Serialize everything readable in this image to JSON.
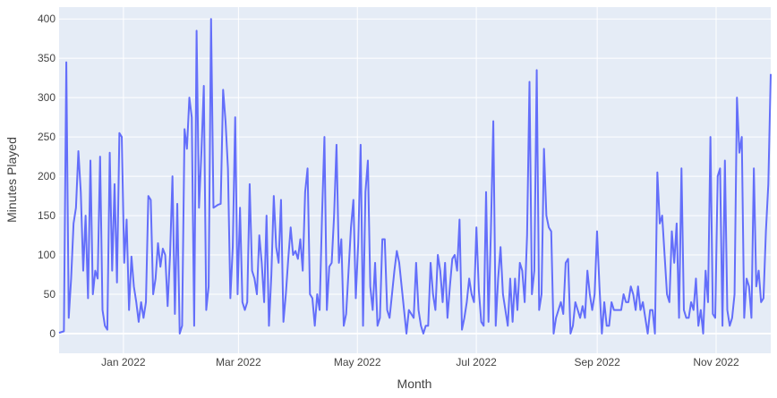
{
  "chart_data": {
    "type": "line",
    "xlabel": "Month",
    "ylabel": "Minutes Played",
    "x_start": "2021-11-29",
    "x_end": "2022-11-29",
    "ylim": [
      -25,
      415
    ],
    "grid": true,
    "yticks": [
      0,
      50,
      100,
      150,
      200,
      250,
      300,
      350,
      400
    ],
    "xticks": [
      {
        "date": "2022-01-01",
        "label": "Jan 2022"
      },
      {
        "date": "2022-03-01",
        "label": "Mar 2022"
      },
      {
        "date": "2022-05-01",
        "label": "May 2022"
      },
      {
        "date": "2022-07-01",
        "label": "Jul 2022"
      },
      {
        "date": "2022-09-01",
        "label": "Sep 2022"
      },
      {
        "date": "2022-11-01",
        "label": "Nov 2022"
      }
    ],
    "colors": {
      "line": "#636efa",
      "plot_bg": "#e5ecf6",
      "grid": "#ffffff"
    },
    "values": [
      1,
      2,
      3,
      345,
      20,
      70,
      140,
      160,
      232,
      180,
      80,
      150,
      45,
      220,
      50,
      80,
      70,
      225,
      30,
      10,
      5,
      230,
      80,
      190,
      65,
      255,
      250,
      90,
      145,
      30,
      98,
      60,
      40,
      15,
      40,
      20,
      40,
      175,
      170,
      50,
      70,
      115,
      85,
      108,
      100,
      35,
      100,
      200,
      25,
      165,
      0,
      10,
      260,
      235,
      300,
      275,
      10,
      385,
      160,
      230,
      315,
      30,
      60,
      400,
      160,
      162,
      164,
      165,
      310,
      270,
      210,
      45,
      110,
      275,
      50,
      160,
      40,
      30,
      40,
      190,
      80,
      70,
      50,
      125,
      90,
      40,
      150,
      10,
      75,
      175,
      110,
      90,
      170,
      15,
      50,
      95,
      135,
      100,
      105,
      95,
      120,
      80,
      180,
      210,
      50,
      45,
      10,
      50,
      30,
      150,
      250,
      30,
      85,
      90,
      150,
      240,
      90,
      120,
      10,
      25,
      80,
      135,
      170,
      45,
      115,
      240,
      10,
      180,
      220,
      60,
      30,
      90,
      10,
      20,
      120,
      120,
      30,
      20,
      50,
      80,
      105,
      90,
      60,
      30,
      0,
      30,
      25,
      20,
      90,
      30,
      10,
      0,
      10,
      10,
      90,
      50,
      30,
      100,
      80,
      40,
      90,
      20,
      60,
      95,
      100,
      80,
      145,
      5,
      20,
      40,
      70,
      50,
      40,
      135,
      55,
      15,
      10,
      180,
      15,
      130,
      270,
      10,
      70,
      110,
      50,
      30,
      10,
      70,
      15,
      70,
      30,
      90,
      80,
      40,
      125,
      320,
      50,
      80,
      335,
      30,
      50,
      235,
      150,
      135,
      130,
      0,
      20,
      30,
      40,
      25,
      90,
      95,
      0,
      10,
      40,
      30,
      20,
      35,
      20,
      80,
      50,
      30,
      50,
      130,
      60,
      0,
      40,
      10,
      10,
      40,
      30,
      30,
      30,
      30,
      50,
      40,
      40,
      60,
      50,
      30,
      60,
      30,
      40,
      20,
      0,
      30,
      30,
      0,
      205,
      140,
      150,
      100,
      50,
      40,
      130,
      90,
      140,
      20,
      210,
      30,
      20,
      20,
      40,
      30,
      70,
      10,
      30,
      0,
      80,
      40,
      250,
      25,
      20,
      200,
      210,
      10,
      220,
      30,
      10,
      20,
      50,
      300,
      230,
      250,
      20,
      70,
      60,
      20,
      210,
      60,
      80,
      40,
      45,
      130,
      190,
      330
    ]
  }
}
